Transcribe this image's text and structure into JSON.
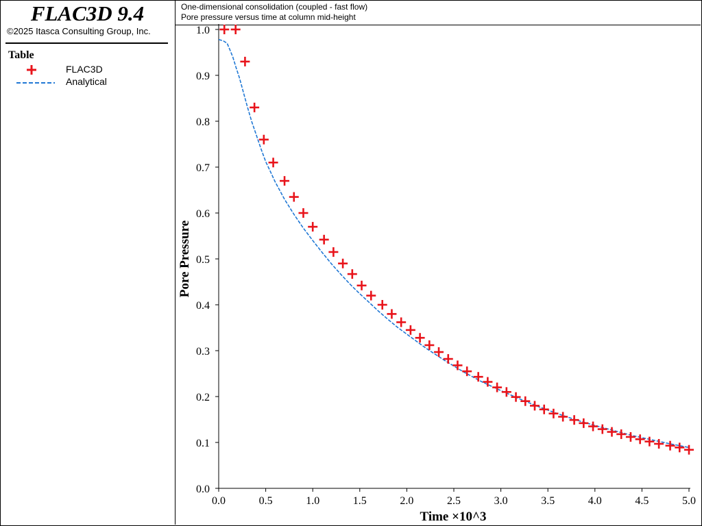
{
  "app": {
    "title": "FLAC3D 9.4",
    "copyright": "©2025 Itasca Consulting Group, Inc."
  },
  "legend": {
    "title": "Table",
    "items": [
      {
        "label": "FLAC3D",
        "symbol": "plus-marker",
        "color": "#e8141b"
      },
      {
        "label": "Analytical",
        "symbol": "dashed-line",
        "color": "#1f77d4"
      }
    ]
  },
  "header": {
    "line1": "One-dimensional consolidation (coupled - fast flow)",
    "line2": "Pore pressure versus time at column mid-height"
  },
  "chart_data": {
    "type": "line",
    "xlabel": "Time ×10^3",
    "ylabel": "Pore Pressure",
    "xlim": [
      0.0,
      5.0
    ],
    "ylim": [
      0.0,
      1.0
    ],
    "xticks": [
      "0.0",
      "0.5",
      "1.0",
      "1.5",
      "2.0",
      "2.5",
      "3.0",
      "3.5",
      "4.0",
      "4.5",
      "5.0"
    ],
    "yticks": [
      "0.0",
      "0.1",
      "0.2",
      "0.3",
      "0.4",
      "0.5",
      "0.6",
      "0.7",
      "0.8",
      "0.9",
      "1.0"
    ],
    "grid": false,
    "legend_position": "left-panel",
    "series": [
      {
        "name": "FLAC3D",
        "style": "markers",
        "color": "#e8141b",
        "x": [
          0.06,
          0.18,
          0.28,
          0.38,
          0.48,
          0.58,
          0.7,
          0.8,
          0.9,
          1.0,
          1.12,
          1.22,
          1.32,
          1.42,
          1.52,
          1.62,
          1.74,
          1.84,
          1.94,
          2.04,
          2.14,
          2.24,
          2.34,
          2.44,
          2.54,
          2.64,
          2.76,
          2.86,
          2.96,
          3.06,
          3.16,
          3.26,
          3.36,
          3.46,
          3.56,
          3.66,
          3.78,
          3.88,
          3.98,
          4.08,
          4.18,
          4.28,
          4.38,
          4.48,
          4.58,
          4.68,
          4.8,
          4.9,
          5.0
        ],
        "y": [
          1.0,
          1.0,
          0.93,
          0.83,
          0.76,
          0.71,
          0.67,
          0.635,
          0.6,
          0.57,
          0.542,
          0.515,
          0.49,
          0.467,
          0.442,
          0.42,
          0.4,
          0.38,
          0.362,
          0.345,
          0.328,
          0.312,
          0.297,
          0.282,
          0.268,
          0.255,
          0.243,
          0.232,
          0.22,
          0.21,
          0.199,
          0.19,
          0.18,
          0.172,
          0.163,
          0.156,
          0.149,
          0.142,
          0.135,
          0.129,
          0.123,
          0.118,
          0.112,
          0.107,
          0.102,
          0.097,
          0.093,
          0.089,
          0.084
        ]
      },
      {
        "name": "Analytical",
        "style": "dashed-line",
        "color": "#1f77d4",
        "x": [
          0.0,
          0.05,
          0.09,
          0.12,
          0.15,
          0.18,
          0.22,
          0.26,
          0.3,
          0.35,
          0.4,
          0.45,
          0.5,
          0.55,
          0.6,
          0.7,
          0.8,
          0.9,
          1.0,
          1.1,
          1.2,
          1.3,
          1.4,
          1.5,
          1.6,
          1.7,
          1.8,
          1.9,
          2.0,
          2.2,
          2.4,
          2.6,
          2.8,
          3.0,
          3.2,
          3.4,
          3.6,
          3.8,
          4.0,
          4.2,
          4.4,
          4.6,
          4.8,
          5.0
        ],
        "y": [
          0.978,
          0.975,
          0.97,
          0.955,
          0.94,
          0.92,
          0.895,
          0.865,
          0.835,
          0.8,
          0.77,
          0.74,
          0.712,
          0.69,
          0.668,
          0.63,
          0.597,
          0.567,
          0.54,
          0.514,
          0.489,
          0.466,
          0.444,
          0.424,
          0.405,
          0.386,
          0.368,
          0.351,
          0.336,
          0.306,
          0.279,
          0.254,
          0.232,
          0.213,
          0.195,
          0.178,
          0.163,
          0.149,
          0.137,
          0.126,
          0.115,
          0.106,
          0.097,
          0.089
        ]
      }
    ]
  }
}
